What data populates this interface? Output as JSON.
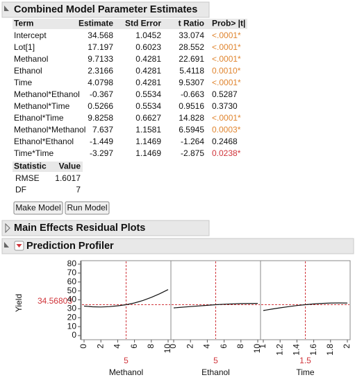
{
  "estimates": {
    "title": "Combined Model Parameter Estimates",
    "columns": [
      "Term",
      "Estimate",
      "Std Error",
      "t Ratio",
      "Prob> |t|"
    ],
    "rows": [
      [
        "Intercept",
        "34.568",
        "1.0452",
        "33.074",
        "<.0001*"
      ],
      [
        "Lot[1]",
        "17.197",
        "0.6023",
        "28.552",
        "<.0001*"
      ],
      [
        "Methanol",
        "9.7133",
        "0.4281",
        "22.691",
        "<.0001*"
      ],
      [
        "Ethanol",
        "2.3166",
        "0.4281",
        "5.4118",
        "0.0010*"
      ],
      [
        "Time",
        "4.0798",
        "0.4281",
        "9.5307",
        "<.0001*"
      ],
      [
        "Methanol*Ethanol",
        "-0.367",
        "0.5534",
        "-0.663",
        "0.5287"
      ],
      [
        "Methanol*Time",
        "0.5266",
        "0.5534",
        "0.9516",
        "0.3730"
      ],
      [
        "Ethanol*Time",
        "9.8258",
        "0.6627",
        "14.828",
        "<.0001*"
      ],
      [
        "Methanol*Methanol",
        "7.637",
        "1.1581",
        "6.5945",
        "0.0003*"
      ],
      [
        "Ethanol*Ethanol",
        "-1.449",
        "1.1469",
        "-1.264",
        "0.2468"
      ],
      [
        "Time*Time",
        "-3.297",
        "1.1469",
        "-2.875",
        "0.0238*"
      ]
    ],
    "prob_colors": [
      "#e0852f",
      "#e0852f",
      "#e0852f",
      "#e0852f",
      "#e0852f",
      null,
      null,
      "#e0852f",
      "#e0852f",
      null,
      "#d0343a"
    ],
    "stats_columns": [
      "Statistic",
      "Value"
    ],
    "stats_rows": [
      [
        "RMSE",
        "1.6017"
      ],
      [
        "DF",
        "7"
      ]
    ],
    "buttons": [
      "Make Model",
      "Run Model"
    ]
  },
  "residual_plots": {
    "title": "Main Effects Residual Plots"
  },
  "profiler": {
    "title": "Prediction Profiler",
    "y_label": "Yield",
    "y_current": 34.56803,
    "ylim": [
      0,
      80
    ],
    "yticks": [
      0,
      10,
      20,
      30,
      40,
      50,
      60,
      70,
      80
    ],
    "factors": [
      {
        "name": "Methanol",
        "current": 5,
        "xlim": [
          0,
          10
        ],
        "xticks": [
          0,
          2,
          4,
          6,
          8,
          10
        ],
        "x": [
          0,
          1,
          2,
          3,
          4,
          5,
          6,
          7,
          8,
          9,
          10
        ],
        "values": [
          33,
          32.2,
          32,
          32.4,
          33.3,
          34.6,
          36.5,
          39.3,
          42.8,
          46.8,
          51.5
        ]
      },
      {
        "name": "Ethanol",
        "current": 5,
        "xlim": [
          0,
          10
        ],
        "xticks": [
          0,
          2,
          4,
          6,
          8,
          10
        ],
        "x": [
          0,
          2,
          4,
          5,
          6,
          8,
          10
        ],
        "values": [
          31,
          32.5,
          33.9,
          34.6,
          35.1,
          35.8,
          36
        ]
      },
      {
        "name": "Time",
        "current": 1.5,
        "xlim": [
          1,
          2
        ],
        "xticks": [
          1,
          1.2,
          1.4,
          1.6,
          1.8,
          2
        ],
        "x": [
          1,
          1.1,
          1.2,
          1.3,
          1.4,
          1.5,
          1.6,
          1.7,
          1.8,
          1.9,
          2
        ],
        "values": [
          28,
          29.6,
          31.1,
          32.4,
          33.6,
          34.6,
          35.4,
          36,
          36.4,
          36.5,
          36.4
        ]
      }
    ]
  }
}
